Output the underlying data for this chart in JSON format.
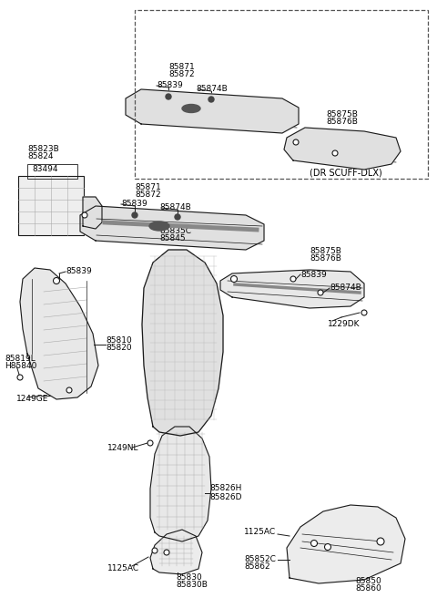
{
  "background_color": "#ffffff",
  "line_color": "#1a1a1a",
  "label_color": "#000000",
  "fs": 6.5,
  "parts_labels": {
    "upper_center_top": [
      "1125AC",
      "85830B",
      "85830",
      "85826D",
      "85826H",
      "1249NL"
    ],
    "upper_right": [
      "85860",
      "85850",
      "85862",
      "85852C",
      "1125AC"
    ],
    "left_pillar": [
      "1249GE",
      "H85840",
      "85819L",
      "85820",
      "85810",
      "85839"
    ],
    "center_pillar": [
      "85845",
      "85835C"
    ],
    "right_scuff": [
      "1229DK",
      "85874B",
      "85839",
      "85876B",
      "85875B"
    ],
    "lower_left": [
      "83494",
      "85824",
      "85823B"
    ],
    "lower_scuff": [
      "85839",
      "85874B",
      "85872",
      "85871"
    ],
    "dlx_label": "(DR SCUFF-DLX)",
    "dlx_right": [
      "85874B",
      "85839",
      "85876B",
      "85875B"
    ],
    "dlx_bottom": [
      "85839",
      "85874B",
      "85872",
      "85871"
    ]
  }
}
